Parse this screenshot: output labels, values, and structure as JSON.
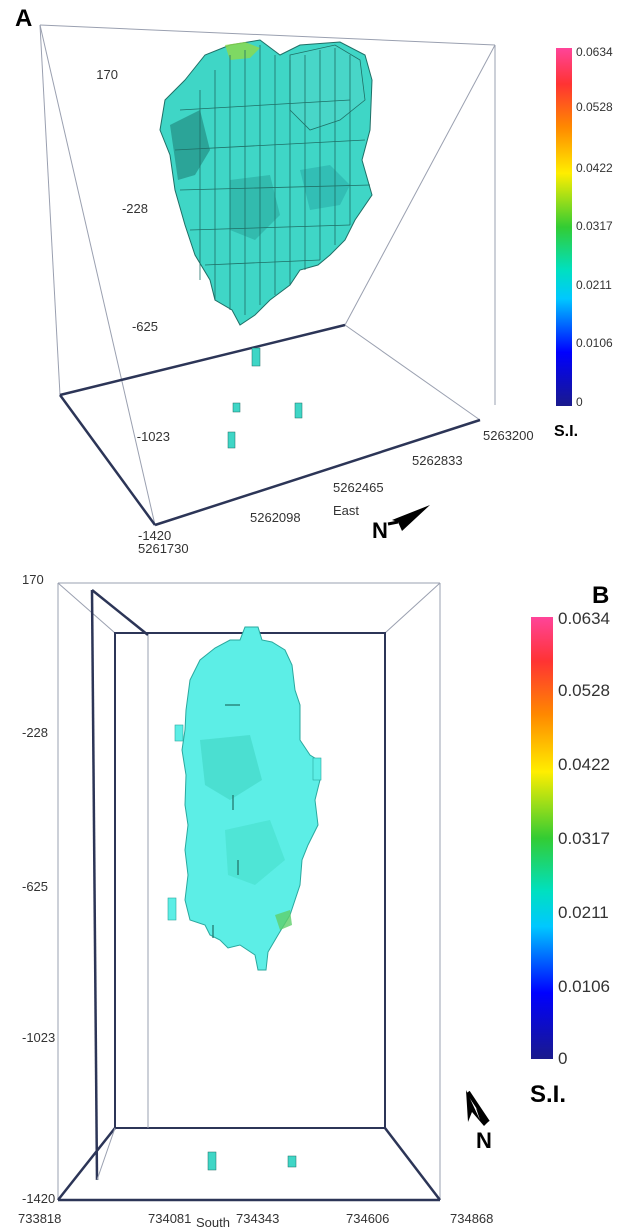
{
  "panels": [
    {
      "label": "A",
      "z_ticks": [
        "170",
        "-228",
        "-625",
        "-1023",
        "-1420"
      ],
      "x_ticks": [
        "5261730",
        "5262098",
        "5262465",
        "5262833",
        "5263200"
      ],
      "x_axis_label": "East",
      "north_label": "N",
      "colorbar": {
        "ticks": [
          "0.0634",
          "0.0528",
          "0.0422",
          "0.0317",
          "0.0211",
          "0.0106",
          "0"
        ],
        "unit": "S.I."
      }
    },
    {
      "label": "B",
      "z_ticks": [
        "170",
        "-228",
        "-625",
        "-1023",
        "-1420"
      ],
      "x_ticks": [
        "733818",
        "734081",
        "734343",
        "734606",
        "734868"
      ],
      "x_axis_label": "South",
      "north_label": "N",
      "colorbar": {
        "ticks": [
          "0.0634",
          "0.0528",
          "0.0422",
          "0.0317",
          "0.0211",
          "0.0106",
          "0"
        ],
        "unit": "S.I."
      }
    }
  ],
  "colors": {
    "scale": [
      "#1a1a8c",
      "#0000ff",
      "#00c8ff",
      "#00e0c0",
      "#33cc33",
      "#ffee00",
      "#ff8800",
      "#ff3333",
      "#ff4499"
    ],
    "voxel_main": "#3fd6c6",
    "voxel_dark": "#238f85",
    "box_front": "#2c3557",
    "box_back": "#9aa0b0"
  }
}
